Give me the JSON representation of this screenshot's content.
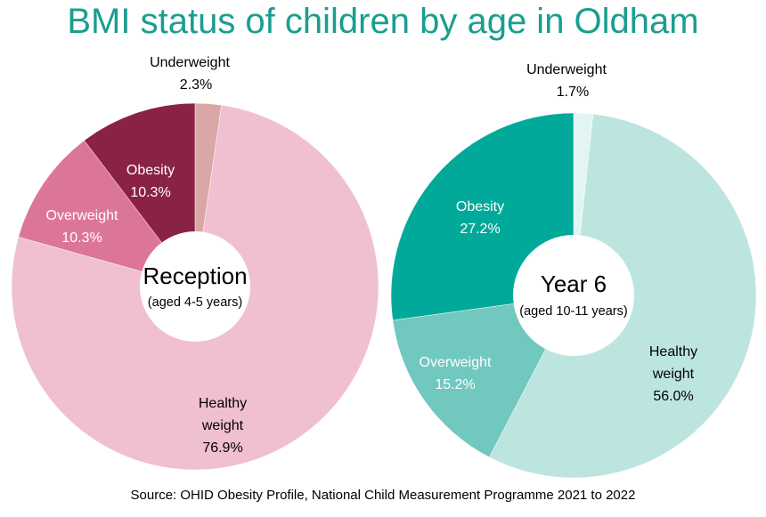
{
  "title": "BMI status of children by age in Oldham",
  "source": "Source: OHID Obesity Profile, National Child Measurement Programme 2021 to 2022",
  "chart_data": [
    {
      "type": "pie",
      "center_title": "Reception",
      "center_subtitle": "(aged 4-5 years)",
      "slices": [
        {
          "label": "Underweight",
          "value": 2.3,
          "value_label": "2.3%",
          "color": "#d9a7a5"
        },
        {
          "label": "Healthy weight",
          "label_lines": [
            "Healthy",
            "weight"
          ],
          "value": 76.9,
          "value_label": "76.9%",
          "color": "#f0bfd0"
        },
        {
          "label": "Overweight",
          "value": 10.3,
          "value_label": "10.3%",
          "color": "#dc7698"
        },
        {
          "label": "Obesity",
          "value": 10.3,
          "value_label": "10.3%",
          "color": "#8a2245"
        }
      ]
    },
    {
      "type": "pie",
      "center_title": "Year 6",
      "center_subtitle": "(aged 10-11 years)",
      "slices": [
        {
          "label": "Underweight",
          "value": 1.7,
          "value_label": "1.7%",
          "color": "#e2f5f3"
        },
        {
          "label": "Healthy weight",
          "label_lines": [
            "Healthy",
            "weight"
          ],
          "value": 56.0,
          "value_label": "56.0%",
          "color": "#bde5e0"
        },
        {
          "label": "Overweight",
          "value": 15.2,
          "value_label": "15.2%",
          "color": "#71c8bf"
        },
        {
          "label": "Obesity",
          "value": 27.2,
          "value_label": "27.2%",
          "color": "#00a99a"
        }
      ]
    }
  ]
}
